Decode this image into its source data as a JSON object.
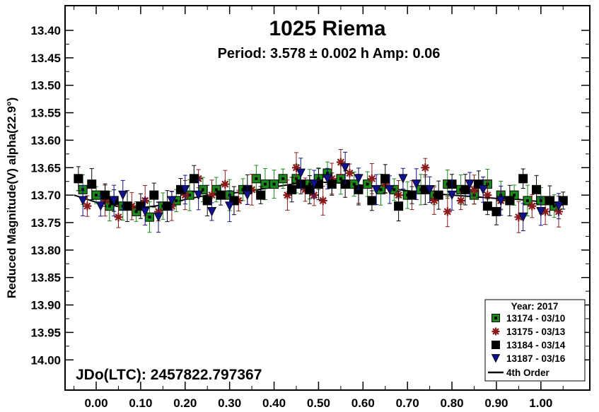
{
  "chart_data": {
    "type": "scatter",
    "title": "1025 Riema",
    "subtitle": "Period: 3.578 ± 0.002 h    Amp: 0.06",
    "ylabel": "Reduced Magnitude(V) alpha(22.9°)",
    "xlabel": "",
    "annotation": "JDo(LTC): 2457822.797367",
    "xlim": [
      -0.07,
      1.11
    ],
    "ylim": [
      13.355,
      14.055
    ],
    "y_inverted": true,
    "x_ticks": [
      "0.00",
      "0.10",
      "0.20",
      "0.30",
      "0.40",
      "0.50",
      "0.60",
      "0.70",
      "0.80",
      "0.90",
      "1.00"
    ],
    "y_ticks": [
      "13.40",
      "13.45",
      "13.50",
      "13.55",
      "13.60",
      "13.65",
      "13.70",
      "13.75",
      "13.80",
      "13.85",
      "13.90",
      "13.95",
      "14.00"
    ],
    "grid": false,
    "legend_position": "bottom-right",
    "legend_title": "Year: 2017",
    "fit_label": "4th Order",
    "fit_curve": {
      "x": [
        -0.05,
        0.0,
        0.05,
        0.1,
        0.15,
        0.2,
        0.25,
        0.3,
        0.35,
        0.4,
        0.45,
        0.5,
        0.55,
        0.6,
        0.65,
        0.7,
        0.75,
        0.8,
        0.85,
        0.9,
        0.95,
        1.0,
        1.05
      ],
      "y": [
        13.7,
        13.713,
        13.721,
        13.723,
        13.718,
        13.708,
        13.7,
        13.697,
        13.692,
        13.685,
        13.679,
        13.676,
        13.678,
        13.682,
        13.687,
        13.692,
        13.697,
        13.7,
        13.703,
        13.706,
        13.708,
        13.712,
        13.718
      ]
    },
    "series": [
      {
        "name": "13174 - 03/10",
        "color": "#1a8a1a",
        "marker": "square",
        "points": [
          [
            -0.03,
            13.69
          ],
          [
            0.0,
            13.7
          ],
          [
            0.03,
            13.72
          ],
          [
            0.06,
            13.72
          ],
          [
            0.09,
            13.73
          ],
          [
            0.12,
            13.74
          ],
          [
            0.15,
            13.72
          ],
          [
            0.18,
            13.71
          ],
          [
            0.21,
            13.7
          ],
          [
            0.24,
            13.69
          ],
          [
            0.27,
            13.69
          ],
          [
            0.3,
            13.7
          ],
          [
            0.33,
            13.69
          ],
          [
            0.36,
            13.67
          ],
          [
            0.38,
            13.68
          ],
          [
            0.4,
            13.68
          ],
          [
            0.42,
            13.67
          ],
          [
            0.45,
            13.67
          ],
          [
            0.48,
            13.68
          ],
          [
            0.5,
            13.67
          ],
          [
            0.52,
            13.66
          ],
          [
            0.55,
            13.67
          ],
          [
            0.58,
            13.68
          ],
          [
            0.61,
            13.68
          ],
          [
            0.64,
            13.69
          ],
          [
            0.67,
            13.69
          ],
          [
            0.7,
            13.7
          ],
          [
            0.73,
            13.69
          ],
          [
            0.76,
            13.7
          ],
          [
            0.79,
            13.68
          ],
          [
            0.82,
            13.69
          ],
          [
            0.85,
            13.7
          ],
          [
            0.88,
            13.68
          ],
          [
            0.91,
            13.7
          ],
          [
            0.94,
            13.7
          ],
          [
            0.97,
            13.71
          ],
          [
            1.0,
            13.71
          ],
          [
            1.03,
            13.72
          ]
        ]
      },
      {
        "name": "13175 - 03/13",
        "color": "#8b1a1a",
        "marker": "star",
        "points": [
          [
            -0.02,
            13.72
          ],
          [
            0.02,
            13.71
          ],
          [
            0.05,
            13.74
          ],
          [
            0.08,
            13.72
          ],
          [
            0.11,
            13.71
          ],
          [
            0.14,
            13.73
          ],
          [
            0.17,
            13.72
          ],
          [
            0.2,
            13.7
          ],
          [
            0.23,
            13.67
          ],
          [
            0.26,
            13.7
          ],
          [
            0.29,
            13.68
          ],
          [
            0.32,
            13.71
          ],
          [
            0.35,
            13.69
          ],
          [
            0.43,
            13.7
          ],
          [
            0.45,
            13.65
          ],
          [
            0.47,
            13.69
          ],
          [
            0.49,
            13.7
          ],
          [
            0.51,
            13.71
          ],
          [
            0.53,
            13.67
          ],
          [
            0.55,
            13.64
          ],
          [
            0.57,
            13.66
          ],
          [
            0.59,
            13.69
          ],
          [
            0.62,
            13.67
          ],
          [
            0.65,
            13.68
          ],
          [
            0.68,
            13.7
          ],
          [
            0.71,
            13.7
          ],
          [
            0.74,
            13.65
          ],
          [
            0.76,
            13.71
          ],
          [
            0.79,
            13.73
          ],
          [
            0.82,
            13.71
          ],
          [
            0.85,
            13.69
          ],
          [
            0.88,
            13.7
          ],
          [
            0.91,
            13.71
          ],
          [
            0.95,
            13.74
          ],
          [
            0.98,
            13.72
          ],
          [
            1.01,
            13.73
          ],
          [
            1.04,
            13.73
          ]
        ]
      },
      {
        "name": "13184 - 03/14",
        "color": "#000000",
        "marker": "square",
        "points": [
          [
            -0.04,
            13.67
          ],
          [
            -0.01,
            13.68
          ],
          [
            0.02,
            13.7
          ],
          [
            0.04,
            13.71
          ],
          [
            0.07,
            13.72
          ],
          [
            0.1,
            13.72
          ],
          [
            0.13,
            13.7
          ],
          [
            0.16,
            13.72
          ],
          [
            0.19,
            13.69
          ],
          [
            0.22,
            13.67
          ],
          [
            0.25,
            13.71
          ],
          [
            0.28,
            13.7
          ],
          [
            0.31,
            13.71
          ],
          [
            0.34,
            13.69
          ],
          [
            0.37,
            13.7
          ],
          [
            0.44,
            13.69
          ],
          [
            0.46,
            13.68
          ],
          [
            0.48,
            13.69
          ],
          [
            0.5,
            13.68
          ],
          [
            0.53,
            13.68
          ],
          [
            0.56,
            13.68
          ],
          [
            0.59,
            13.69
          ],
          [
            0.62,
            13.71
          ],
          [
            0.65,
            13.67
          ],
          [
            0.68,
            13.72
          ],
          [
            0.71,
            13.7
          ],
          [
            0.74,
            13.69
          ],
          [
            0.77,
            13.7
          ],
          [
            0.8,
            13.68
          ],
          [
            0.83,
            13.69
          ],
          [
            0.86,
            13.68
          ],
          [
            0.88,
            13.72
          ],
          [
            0.9,
            13.73
          ],
          [
            0.93,
            13.71
          ],
          [
            0.96,
            13.67
          ],
          [
            0.99,
            13.69
          ],
          [
            1.02,
            13.71
          ],
          [
            1.05,
            13.71
          ]
        ]
      },
      {
        "name": "13187 - 03/16",
        "color": "#10108a",
        "marker": "triangle",
        "points": [
          [
            -0.03,
            13.71
          ],
          [
            0.01,
            13.72
          ],
          [
            0.04,
            13.71
          ],
          [
            0.06,
            13.7
          ],
          [
            0.11,
            13.73
          ],
          [
            0.14,
            13.74
          ],
          [
            0.17,
            13.71
          ],
          [
            0.2,
            13.69
          ],
          [
            0.23,
            13.7
          ],
          [
            0.26,
            13.73
          ],
          [
            0.3,
            13.72
          ],
          [
            0.34,
            13.7
          ],
          [
            0.46,
            13.66
          ],
          [
            0.49,
            13.68
          ],
          [
            0.52,
            13.67
          ],
          [
            0.56,
            13.65
          ],
          [
            0.59,
            13.67
          ],
          [
            0.63,
            13.69
          ],
          [
            0.66,
            13.69
          ],
          [
            0.69,
            13.67
          ],
          [
            0.72,
            13.68
          ],
          [
            0.75,
            13.69
          ],
          [
            0.8,
            13.7
          ],
          [
            0.84,
            13.68
          ],
          [
            0.87,
            13.69
          ],
          [
            0.91,
            13.71
          ],
          [
            0.96,
            13.74
          ],
          [
            1.0,
            13.73
          ],
          [
            1.04,
            13.72
          ]
        ]
      }
    ]
  }
}
